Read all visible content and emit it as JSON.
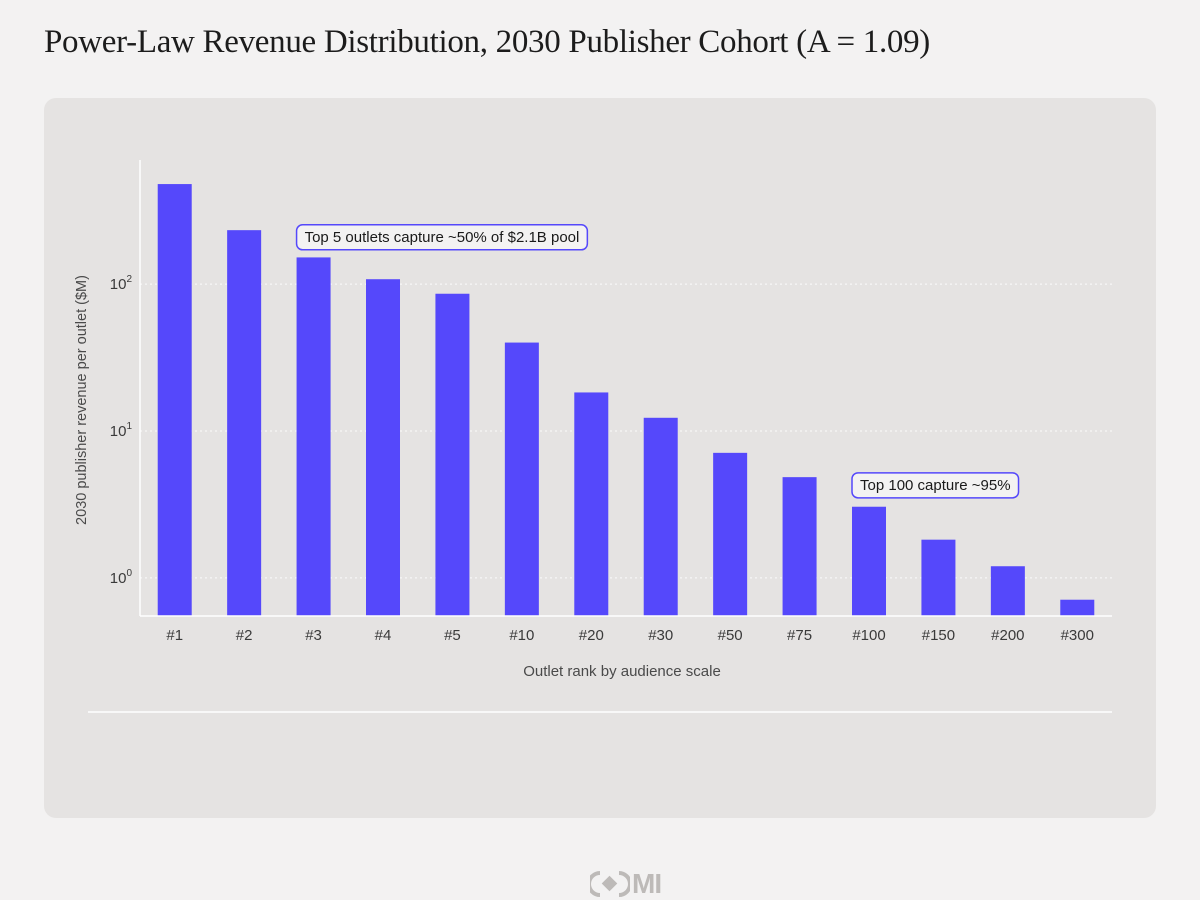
{
  "title": "Power-Law Revenue Distribution, 2030 Publisher Cohort (A = 1.09)",
  "chart_data": {
    "type": "bar",
    "categories": [
      "#1",
      "#2",
      "#3",
      "#4",
      "#5",
      "#10",
      "#20",
      "#30",
      "#50",
      "#75",
      "#100",
      "#150",
      "#200",
      "#300"
    ],
    "values": [
      480,
      233,
      152,
      108,
      86,
      40,
      18.3,
      12.3,
      7.1,
      4.85,
      3.05,
      1.82,
      1.2,
      0.71
    ],
    "xlabel": "Outlet rank by audience scale",
    "ylabel": "2030 publisher revenue per outlet ($M)",
    "yscale": "log",
    "ylim": [
      0.55,
      700
    ],
    "yticks": [
      {
        "value": 1,
        "base": "10",
        "exp": "0"
      },
      {
        "value": 10,
        "base": "10",
        "exp": "1"
      },
      {
        "value": 100,
        "base": "10",
        "exp": "2"
      }
    ],
    "grid": "horizontal dotted",
    "bar_color": "#5548fb",
    "annotations": [
      {
        "text": "Top 5 outlets capture ~50% of $2.1B pool",
        "category": "#3",
        "value": 210
      },
      {
        "text": "Top 100 capture ~95%",
        "category": "#100",
        "value": 4.3
      }
    ]
  },
  "logo": {
    "text": "MI"
  }
}
